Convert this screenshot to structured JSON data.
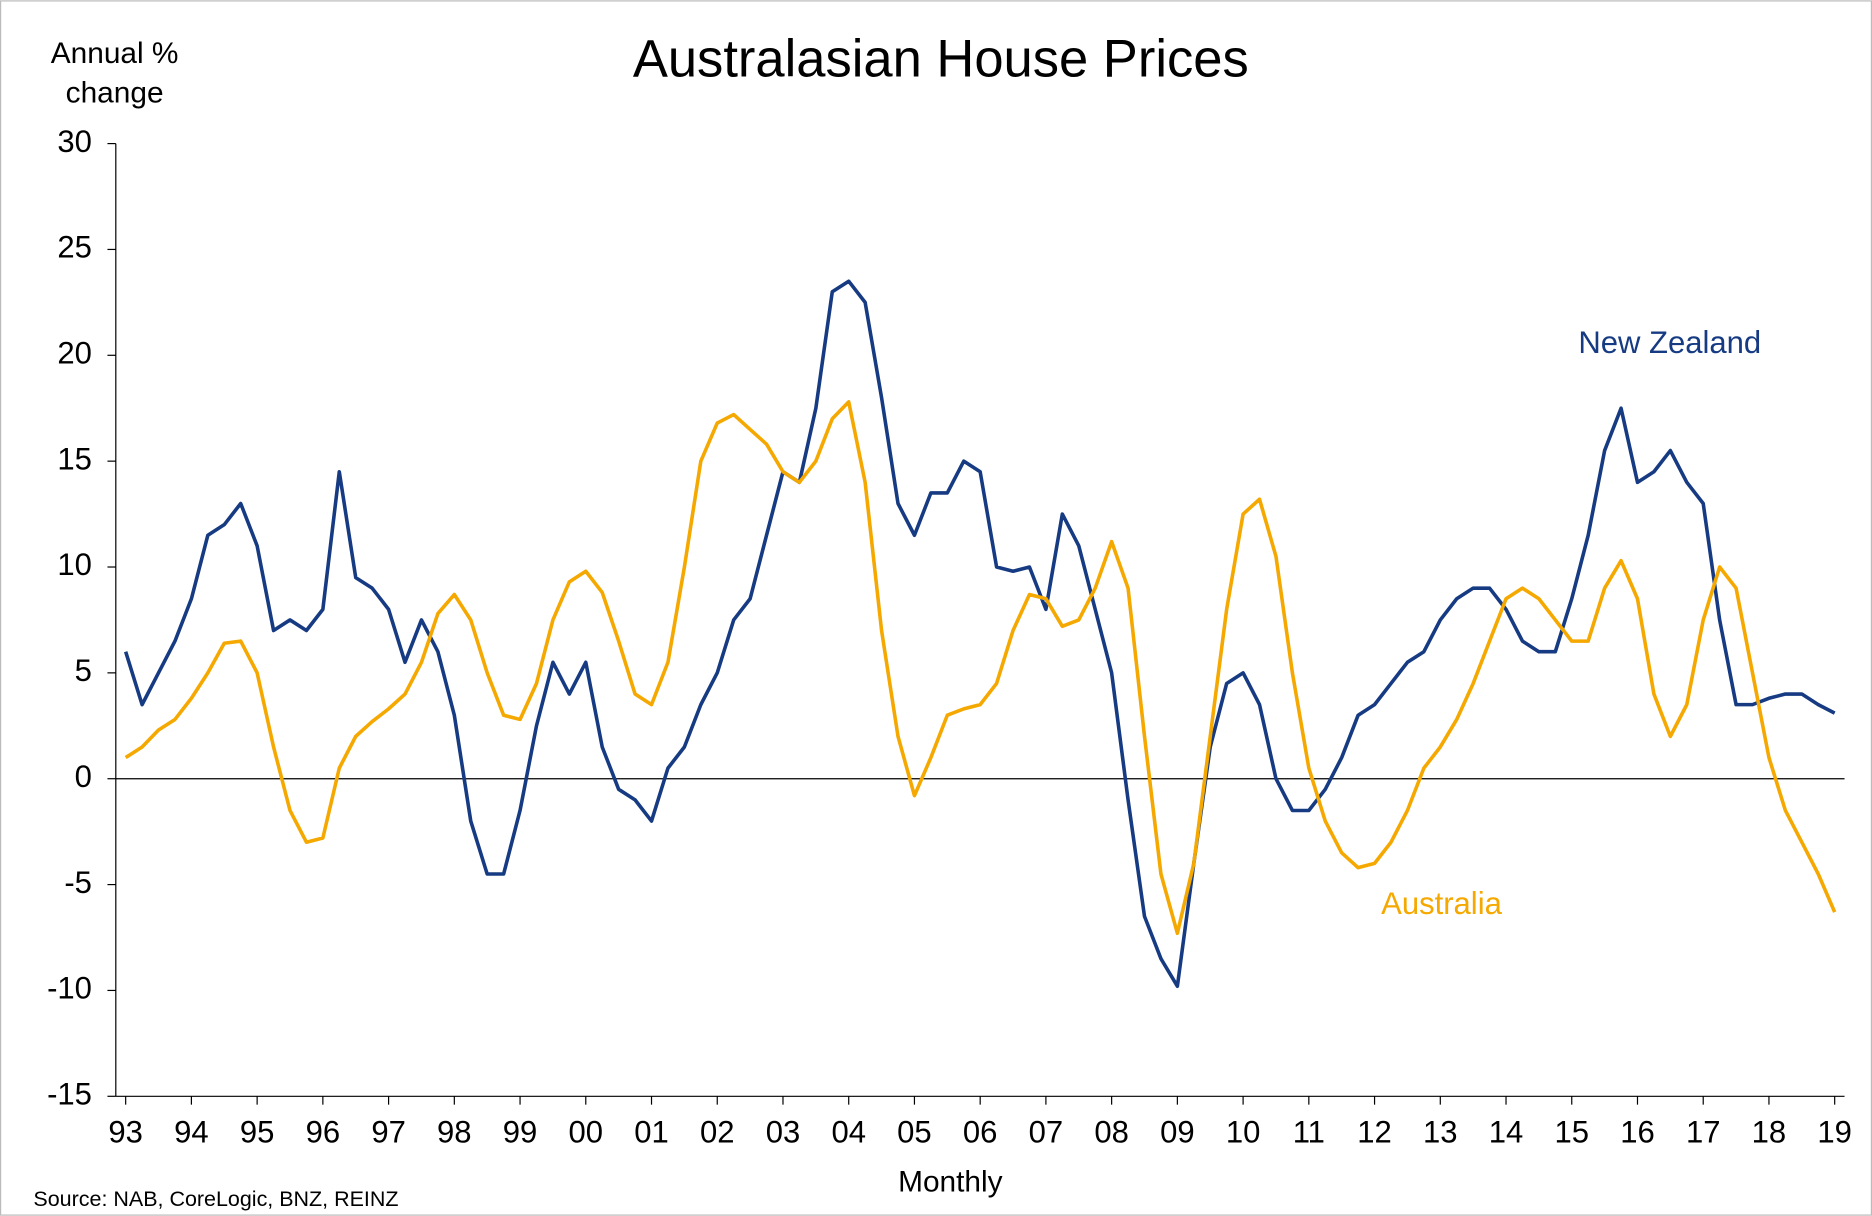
{
  "chart_data": {
    "type": "line",
    "title": "Australasian House Prices",
    "ylabel": [
      "Annual %",
      "change"
    ],
    "xlabel": "Monthly",
    "source": "Source: NAB, CoreLogic, BNZ, REINZ",
    "xlim": [
      1992.85,
      2019.15
    ],
    "ylim": [
      -15,
      30
    ],
    "yticks": [
      30,
      25,
      20,
      15,
      10,
      5,
      0,
      -5,
      -10,
      -15
    ],
    "xticks": [
      {
        "value": 1993,
        "label": "93"
      },
      {
        "value": 1994,
        "label": "94"
      },
      {
        "value": 1995,
        "label": "95"
      },
      {
        "value": 1996,
        "label": "96"
      },
      {
        "value": 1997,
        "label": "97"
      },
      {
        "value": 1998,
        "label": "98"
      },
      {
        "value": 1999,
        "label": "99"
      },
      {
        "value": 2000,
        "label": "00"
      },
      {
        "value": 2001,
        "label": "01"
      },
      {
        "value": 2002,
        "label": "02"
      },
      {
        "value": 2003,
        "label": "03"
      },
      {
        "value": 2004,
        "label": "04"
      },
      {
        "value": 2005,
        "label": "05"
      },
      {
        "value": 2006,
        "label": "06"
      },
      {
        "value": 2007,
        "label": "07"
      },
      {
        "value": 2008,
        "label": "08"
      },
      {
        "value": 2009,
        "label": "09"
      },
      {
        "value": 2010,
        "label": "10"
      },
      {
        "value": 2011,
        "label": "11"
      },
      {
        "value": 2012,
        "label": "12"
      },
      {
        "value": 2013,
        "label": "13"
      },
      {
        "value": 2014,
        "label": "14"
      },
      {
        "value": 2015,
        "label": "15"
      },
      {
        "value": 2016,
        "label": "16"
      },
      {
        "value": 2017,
        "label": "17"
      },
      {
        "value": 2018,
        "label": "18"
      },
      {
        "value": 2019,
        "label": "19"
      }
    ],
    "grid": false,
    "x": [
      1993,
      1993.25,
      1993.5,
      1993.75,
      1994,
      1994.25,
      1994.5,
      1994.75,
      1995,
      1995.25,
      1995.5,
      1995.75,
      1996,
      1996.25,
      1996.5,
      1996.75,
      1997,
      1997.25,
      1997.5,
      1997.75,
      1998,
      1998.25,
      1998.5,
      1998.75,
      1999,
      1999.25,
      1999.5,
      1999.75,
      2000,
      2000.25,
      2000.5,
      2000.75,
      2001,
      2001.25,
      2001.5,
      2001.75,
      2002,
      2002.25,
      2002.5,
      2002.75,
      2003,
      2003.25,
      2003.5,
      2003.75,
      2004,
      2004.25,
      2004.5,
      2004.75,
      2005,
      2005.25,
      2005.5,
      2005.75,
      2006,
      2006.25,
      2006.5,
      2006.75,
      2007,
      2007.25,
      2007.5,
      2007.75,
      2008,
      2008.25,
      2008.5,
      2008.75,
      2009,
      2009.25,
      2009.5,
      2009.75,
      2010,
      2010.25,
      2010.5,
      2010.75,
      2011,
      2011.25,
      2011.5,
      2011.75,
      2012,
      2012.25,
      2012.5,
      2012.75,
      2013,
      2013.25,
      2013.5,
      2013.75,
      2014,
      2014.25,
      2014.5,
      2014.75,
      2015,
      2015.25,
      2015.5,
      2015.75,
      2016,
      2016.25,
      2016.5,
      2016.75,
      2017,
      2017.25,
      2017.5,
      2017.75,
      2018,
      2018.25,
      2018.5,
      2018.75,
      2019
    ],
    "series": [
      {
        "name": "New Zealand",
        "color": "#163b82",
        "values": [
          6.0,
          3.5,
          5.0,
          6.5,
          8.5,
          11.5,
          12.0,
          13.0,
          11.0,
          7.0,
          7.5,
          7.0,
          8.0,
          14.5,
          9.5,
          9.0,
          8.0,
          5.5,
          7.5,
          6.0,
          3.0,
          -2.0,
          -4.5,
          -4.5,
          -1.5,
          2.5,
          5.5,
          4.0,
          5.5,
          1.5,
          -0.5,
          -1.0,
          -2.0,
          0.5,
          1.5,
          3.5,
          5.0,
          7.5,
          8.5,
          11.5,
          14.5,
          14.0,
          17.5,
          23.0,
          23.5,
          22.5,
          18.0,
          13.0,
          11.5,
          13.5,
          13.5,
          15.0,
          14.5,
          10.0,
          9.8,
          10.0,
          8.0,
          12.5,
          11.0,
          8.0,
          5.0,
          -1.0,
          -6.5,
          -8.5,
          -9.8,
          -4.0,
          1.5,
          4.5,
          5.0,
          3.5,
          0.0,
          -1.5,
          -1.5,
          -0.5,
          1.0,
          3.0,
          3.5,
          4.5,
          5.5,
          6.0,
          7.5,
          8.5,
          9.0,
          9.0,
          8.0,
          6.5,
          6.0,
          6.0,
          8.5,
          11.5,
          15.5,
          17.5,
          14.0,
          14.5,
          15.5,
          14.0,
          13.0,
          7.5,
          3.5,
          3.5,
          3.8,
          4.0,
          4.0,
          3.5,
          3.1
        ]
      },
      {
        "name": "Australia",
        "color": "#f5a800",
        "values": [
          1.0,
          1.5,
          2.3,
          2.8,
          3.8,
          5.0,
          6.4,
          6.5,
          5.0,
          1.5,
          -1.5,
          -3.0,
          -2.8,
          0.5,
          2.0,
          2.7,
          3.3,
          4.0,
          5.5,
          7.8,
          8.7,
          7.5,
          5.0,
          3.0,
          2.8,
          4.5,
          7.5,
          9.3,
          9.8,
          8.8,
          6.5,
          4.0,
          3.5,
          5.5,
          10.0,
          15.0,
          16.8,
          17.2,
          16.5,
          15.8,
          14.5,
          14.0,
          15.0,
          17.0,
          17.8,
          14.0,
          7.0,
          2.0,
          -0.8,
          1.0,
          3.0,
          3.3,
          3.5,
          4.5,
          7.0,
          8.7,
          8.5,
          7.2,
          7.5,
          9.0,
          11.2,
          9.0,
          2.0,
          -4.5,
          -7.3,
          -4.0,
          2.0,
          8.0,
          12.5,
          13.2,
          10.5,
          5.0,
          0.5,
          -2.0,
          -3.5,
          -4.2,
          -4.0,
          -3.0,
          -1.5,
          0.5,
          1.5,
          2.8,
          4.5,
          6.5,
          8.5,
          9.0,
          8.5,
          7.5,
          6.5,
          6.5,
          9.0,
          10.3,
          8.5,
          4.0,
          2.0,
          3.5,
          7.5,
          10.0,
          9.0,
          5.0,
          1.0,
          -1.5,
          -3.0,
          -4.5,
          -6.3
        ]
      }
    ]
  }
}
